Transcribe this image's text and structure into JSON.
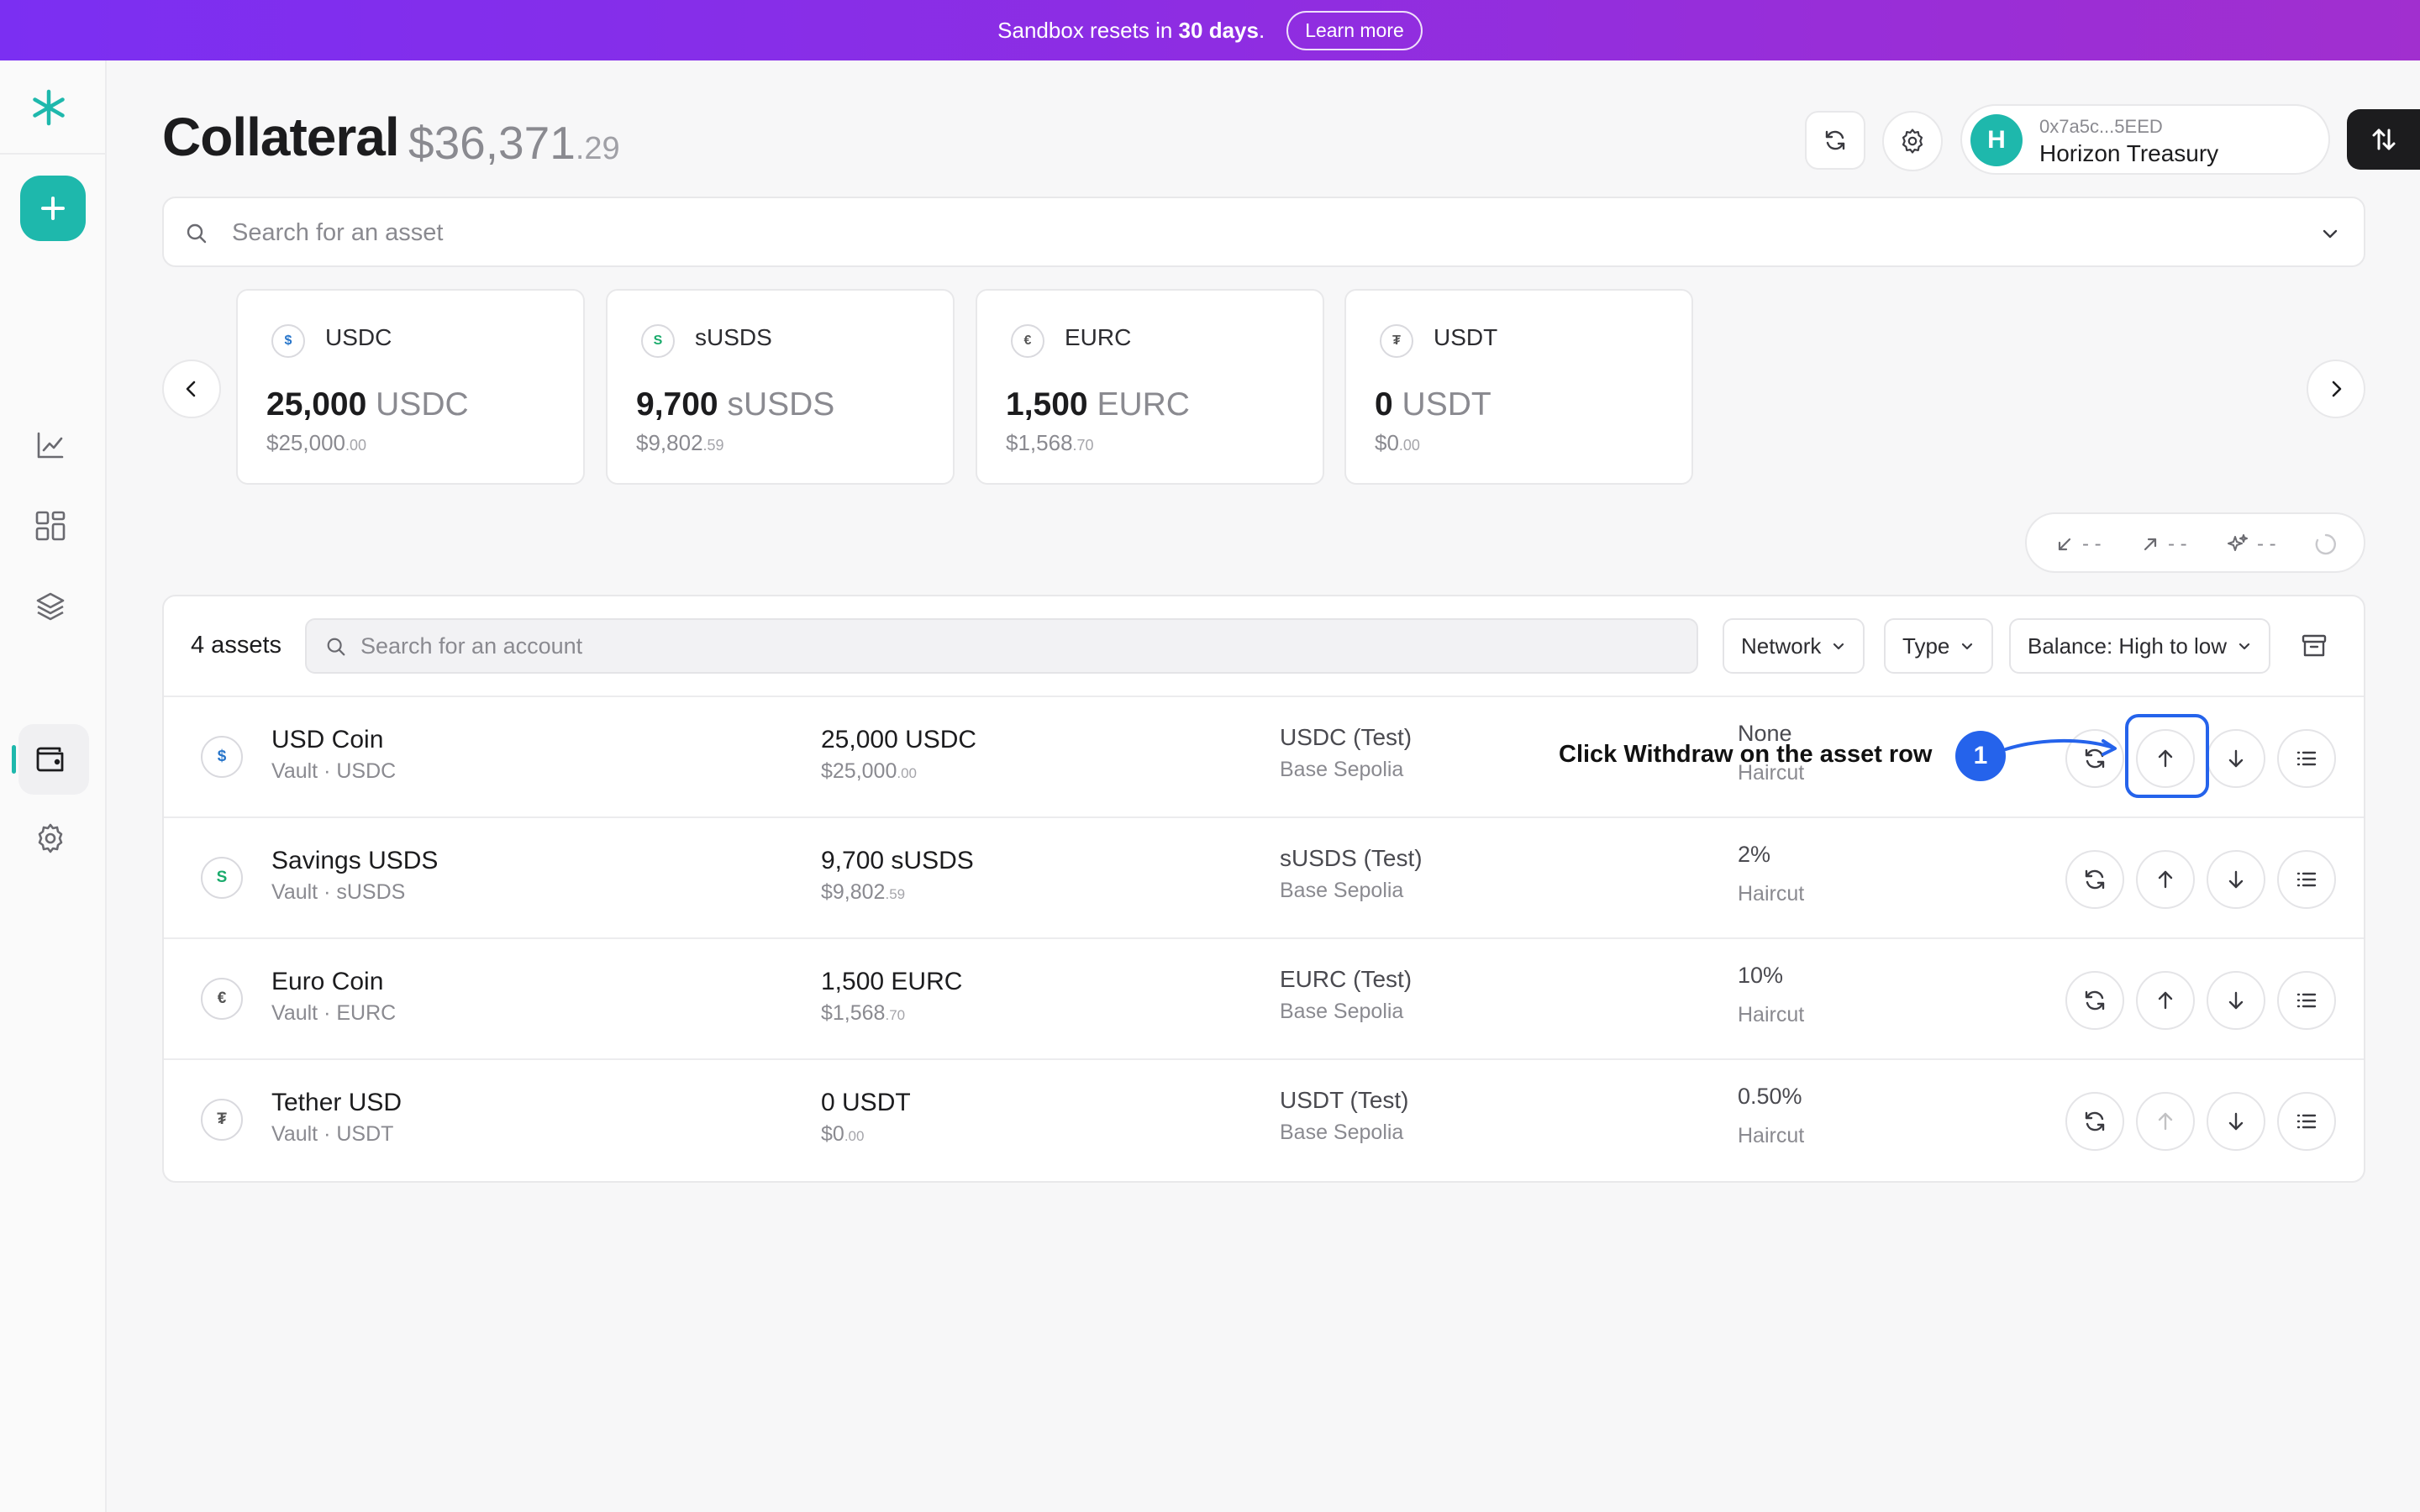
{
  "banner": {
    "text_pre": "Sandbox resets in",
    "text_bold": "30 days",
    "text_post": ".",
    "learn_more": "Learn more"
  },
  "header": {
    "title": "Collateral",
    "total_main": "$36,371",
    "total_cents": ".29",
    "account_address": "0x7a5c...5EED",
    "account_name": "Horizon Treasury",
    "account_initial": "H"
  },
  "asset_search": {
    "placeholder": "Search for an asset"
  },
  "cards": [
    {
      "icon": "$",
      "symbol": "USDC",
      "balance": "25,000",
      "unit": "USDC",
      "usd_main": "$25,000",
      "usd_cents": ".00",
      "icon_color": "#2775ca"
    },
    {
      "icon": "S",
      "symbol": "sUSDS",
      "balance": "9,700",
      "unit": "sUSDS",
      "usd_main": "$9,802",
      "usd_cents": ".59",
      "icon_color": "#1aab6c"
    },
    {
      "icon": "€",
      "symbol": "EURC",
      "balance": "1,500",
      "unit": "EURC",
      "usd_main": "$1,568",
      "usd_cents": ".70",
      "icon_color": "#555555"
    },
    {
      "icon": "₮",
      "symbol": "USDT",
      "balance": "0",
      "unit": "USDT",
      "usd_main": "$0",
      "usd_cents": ".00",
      "icon_color": "#555555"
    }
  ],
  "stats": {
    "incoming": "- -",
    "outgoing": "- -",
    "yield": "- -"
  },
  "table": {
    "count": "4 assets",
    "account_search_placeholder": "Search for an account",
    "filters": {
      "network": "Network",
      "type": "Type",
      "sort": "Balance: High to low"
    },
    "rows": [
      {
        "icon": "$",
        "icon_color": "#2775ca",
        "name": "USD Coin",
        "sub": "Vault · USDC",
        "balance": "25,000 USDC",
        "usd_main": "$25,000",
        "usd_cents": ".00",
        "network_token": "USDC (Test)",
        "network": "Base Sepolia",
        "haircut": "None",
        "haircut_label": "Haircut"
      },
      {
        "icon": "S",
        "icon_color": "#1aab6c",
        "name": "Savings USDS",
        "sub": "Vault · sUSDS",
        "balance": "9,700 sUSDS",
        "usd_main": "$9,802",
        "usd_cents": ".59",
        "network_token": "sUSDS (Test)",
        "network": "Base Sepolia",
        "haircut": "2%",
        "haircut_label": "Haircut"
      },
      {
        "icon": "€",
        "icon_color": "#555555",
        "name": "Euro Coin",
        "sub": "Vault · EURC",
        "balance": "1,500 EURC",
        "usd_main": "$1,568",
        "usd_cents": ".70",
        "network_token": "EURC (Test)",
        "network": "Base Sepolia",
        "haircut": "10%",
        "haircut_label": "Haircut"
      },
      {
        "icon": "₮",
        "icon_color": "#555555",
        "name": "Tether USD",
        "sub": "Vault · USDT",
        "balance": "0 USDT",
        "usd_main": "$0",
        "usd_cents": ".00",
        "network_token": "USDT (Test)",
        "network": "Base Sepolia",
        "haircut": "0.50%",
        "haircut_label": "Haircut"
      }
    ]
  },
  "tutorial": {
    "step": "1",
    "text": "Click Withdraw on the asset row"
  },
  "colors": {
    "brand": "#1eb8ac",
    "banner_start": "#7b2ff2",
    "banner_end": "#a12fcf",
    "tutorial": "#2563eb"
  }
}
